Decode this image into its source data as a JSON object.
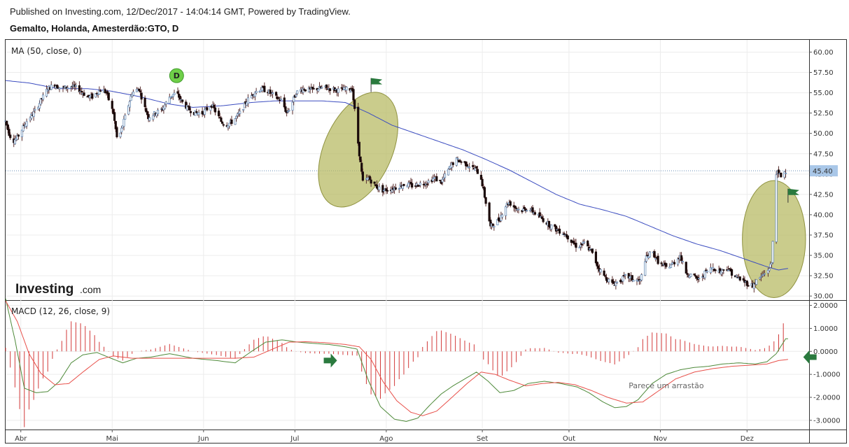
{
  "header": {
    "published": "Published on Investing.com, 12/Dec/2017 - 14:04:14 GMT, Powered by TradingView.",
    "instrument": "Gemalto, Holanda, Amesterdão:GTO, D"
  },
  "logo": {
    "main": "Investing",
    "suffix": ".com"
  },
  "chart_data": [
    {
      "type": "candlestick",
      "title": "MA (50, close, 0)",
      "ylim": [
        29.5,
        61.5
      ],
      "yticks": [
        "60.00",
        "57.50",
        "55.00",
        "52.50",
        "50.00",
        "47.50",
        "45.00",
        "42.50",
        "40.00",
        "37.50",
        "35.00",
        "32.50",
        "30.00"
      ],
      "last_price_label": "45.40",
      "last_price": 45.4,
      "colors": {
        "up": "#ffffff",
        "down": "#1a0a0a",
        "wick": "#5a2e2e",
        "ma": "#3b4cc0",
        "price_line": "#6a8fb8",
        "ellipse": "#b5b860"
      },
      "x_labels": [
        "Abr",
        "Mai",
        "Jun",
        "Jul",
        "Ago",
        "Set",
        "Out",
        "Nov",
        "Dez"
      ],
      "x_label_days": [
        13,
        91,
        169,
        247,
        325,
        407,
        481,
        559,
        633
      ],
      "price_anchors": [
        [
          0,
          51.5
        ],
        [
          3,
          50.0
        ],
        [
          6,
          49.0
        ],
        [
          10,
          49.5
        ],
        [
          14,
          50.5
        ],
        [
          18,
          51.5
        ],
        [
          24,
          52.5
        ],
        [
          30,
          54.0
        ],
        [
          36,
          55.5
        ],
        [
          42,
          56.0
        ],
        [
          48,
          55.5
        ],
        [
          56,
          55.8
        ],
        [
          62,
          55.5
        ],
        [
          66,
          55.0
        ],
        [
          70,
          54.5
        ],
        [
          74,
          54.5
        ],
        [
          78,
          55.0
        ],
        [
          82,
          55.5
        ],
        [
          86,
          55.0
        ],
        [
          92,
          52.5
        ],
        [
          95,
          49.5
        ],
        [
          98,
          50.0
        ],
        [
          102,
          52.0
        ],
        [
          108,
          55.0
        ],
        [
          114,
          55.5
        ],
        [
          118,
          53.5
        ],
        [
          122,
          52.0
        ],
        [
          128,
          52.5
        ],
        [
          134,
          53.0
        ],
        [
          140,
          54.5
        ],
        [
          146,
          55.0
        ],
        [
          150,
          54.0
        ],
        [
          156,
          53.0
        ],
        [
          162,
          52.5
        ],
        [
          168,
          52.5
        ],
        [
          172,
          53.0
        ],
        [
          176,
          53.5
        ],
        [
          180,
          52.5
        ],
        [
          184,
          51.5
        ],
        [
          188,
          51.0
        ],
        [
          194,
          51.5
        ],
        [
          200,
          52.5
        ],
        [
          206,
          54.0
        ],
        [
          212,
          55.0
        ],
        [
          218,
          55.5
        ],
        [
          224,
          55.2
        ],
        [
          230,
          54.5
        ],
        [
          236,
          54.0
        ],
        [
          240,
          52.5
        ],
        [
          244,
          53.5
        ],
        [
          248,
          55.0
        ],
        [
          254,
          55.5
        ],
        [
          260,
          55.3
        ],
        [
          266,
          55.5
        ],
        [
          272,
          55.6
        ],
        [
          278,
          55.5
        ],
        [
          284,
          55.3
        ],
        [
          290,
          55.4
        ],
        [
          296,
          55.5
        ],
        [
          302,
          47.5
        ],
        [
          305,
          44.0
        ],
        [
          310,
          44.5
        ],
        [
          316,
          43.5
        ],
        [
          322,
          43.0
        ],
        [
          330,
          43.2
        ],
        [
          336,
          43.5
        ],
        [
          342,
          43.8
        ],
        [
          348,
          43.5
        ],
        [
          354,
          43.8
        ],
        [
          360,
          44.0
        ],
        [
          366,
          44.5
        ],
        [
          372,
          44.0
        ],
        [
          378,
          45.5
        ],
        [
          384,
          46.8
        ],
        [
          390,
          46.5
        ],
        [
          396,
          46.0
        ],
        [
          402,
          45.5
        ],
        [
          406,
          44.5
        ],
        [
          410,
          41.5
        ],
        [
          414,
          38.5
        ],
        [
          418,
          39.0
        ],
        [
          422,
          39.5
        ],
        [
          426,
          41.0
        ],
        [
          430,
          41.5
        ],
        [
          434,
          41.0
        ],
        [
          440,
          40.5
        ],
        [
          446,
          40.8
        ],
        [
          452,
          40.2
        ],
        [
          458,
          39.5
        ],
        [
          464,
          38.8
        ],
        [
          470,
          38.2
        ],
        [
          476,
          37.8
        ],
        [
          482,
          37.0
        ],
        [
          488,
          36.0
        ],
        [
          494,
          36.5
        ],
        [
          500,
          35.5
        ],
        [
          506,
          33.5
        ],
        [
          512,
          32.3
        ],
        [
          518,
          31.5
        ],
        [
          524,
          31.8
        ],
        [
          530,
          32.5
        ],
        [
          536,
          32.0
        ],
        [
          542,
          31.8
        ],
        [
          546,
          34.5
        ],
        [
          552,
          35.5
        ],
        [
          558,
          34.0
        ],
        [
          564,
          33.5
        ],
        [
          570,
          34.0
        ],
        [
          576,
          35.0
        ],
        [
          580,
          33.0
        ],
        [
          586,
          32.5
        ],
        [
          592,
          32.0
        ],
        [
          598,
          33.0
        ],
        [
          604,
          33.5
        ],
        [
          610,
          33.0
        ],
        [
          616,
          33.5
        ],
        [
          622,
          32.5
        ],
        [
          628,
          32.0
        ],
        [
          634,
          31.5
        ],
        [
          638,
          31.3
        ],
        [
          642,
          32.0
        ],
        [
          646,
          32.5
        ],
        [
          650,
          33.0
        ],
        [
          654,
          34.0
        ],
        [
          658,
          45.2
        ],
        [
          662,
          44.8
        ],
        [
          666,
          45.4
        ]
      ],
      "ma_anchors": [
        [
          0,
          56.5
        ],
        [
          20,
          56.2
        ],
        [
          45,
          55.5
        ],
        [
          70,
          55.5
        ],
        [
          90,
          55.2
        ],
        [
          115,
          54.5
        ],
        [
          140,
          53.6
        ],
        [
          160,
          53.2
        ],
        [
          185,
          53.4
        ],
        [
          210,
          53.8
        ],
        [
          230,
          54.0
        ],
        [
          250,
          54.0
        ],
        [
          270,
          54.0
        ],
        [
          290,
          53.8
        ],
        [
          310,
          52.5
        ],
        [
          330,
          51.0
        ],
        [
          350,
          50.0
        ],
        [
          370,
          49.0
        ],
        [
          390,
          48.0
        ],
        [
          410,
          46.8
        ],
        [
          430,
          45.5
        ],
        [
          450,
          44.0
        ],
        [
          470,
          42.5
        ],
        [
          490,
          41.3
        ],
        [
          510,
          40.6
        ],
        [
          530,
          39.8
        ],
        [
          550,
          38.6
        ],
        [
          570,
          37.4
        ],
        [
          590,
          36.4
        ],
        [
          610,
          35.6
        ],
        [
          630,
          34.6
        ],
        [
          650,
          33.6
        ],
        [
          660,
          33.2
        ],
        [
          668,
          33.4
        ]
      ],
      "ellipses": [
        {
          "cx_day": 301,
          "cy_value": 48.0,
          "rx_days": 29,
          "ry_value": 7.5,
          "rotate_deg": 24
        },
        {
          "cx_day": 656,
          "cy_value": 37.0,
          "rx_days": 27,
          "ry_value": 7.2,
          "rotate_deg": 0
        }
      ],
      "flags": [
        {
          "day": 312,
          "value": 56.8,
          "color": "#2a7a3e"
        },
        {
          "day": 668,
          "value": 43.2,
          "color": "#2a7a3e"
        }
      ],
      "dividend_marker": {
        "label": "D",
        "day": 146,
        "value": 57.1,
        "color": "#6fcf49"
      }
    },
    {
      "type": "line",
      "title": "MACD (12, 26, close, 9)",
      "ylim": [
        -3.4,
        2.2
      ],
      "yticks": [
        "2.0000",
        "1.0000",
        "0.0000",
        "-1.0000",
        "-2.0000",
        "-3.0000"
      ],
      "series": [
        {
          "role": "macd",
          "color": "#4e8a3a",
          "anchors": [
            [
              0,
              2.3
            ],
            [
              8,
              0.5
            ],
            [
              16,
              -1.6
            ],
            [
              26,
              -1.8
            ],
            [
              36,
              -1.75
            ],
            [
              46,
              -1.3
            ],
            [
              56,
              -0.5
            ],
            [
              66,
              -0.15
            ],
            [
              78,
              -0.05
            ],
            [
              90,
              -0.3
            ],
            [
              100,
              -0.5
            ],
            [
              112,
              -0.3
            ],
            [
              124,
              -0.25
            ],
            [
              140,
              -0.1
            ],
            [
              160,
              -0.3
            ],
            [
              180,
              -0.4
            ],
            [
              196,
              -0.5
            ],
            [
              210,
              0.0
            ],
            [
              222,
              0.4
            ],
            [
              236,
              0.5
            ],
            [
              250,
              0.4
            ],
            [
              262,
              0.35
            ],
            [
              276,
              0.3
            ],
            [
              290,
              0.2
            ],
            [
              300,
              0.1
            ],
            [
              310,
              -1.3
            ],
            [
              320,
              -2.4
            ],
            [
              332,
              -2.95
            ],
            [
              342,
              -3.05
            ],
            [
              352,
              -2.9
            ],
            [
              362,
              -2.35
            ],
            [
              372,
              -1.85
            ],
            [
              382,
              -1.5
            ],
            [
              392,
              -1.2
            ],
            [
              402,
              -0.9
            ],
            [
              412,
              -1.3
            ],
            [
              422,
              -1.8
            ],
            [
              434,
              -1.7
            ],
            [
              446,
              -1.4
            ],
            [
              460,
              -1.3
            ],
            [
              474,
              -1.4
            ],
            [
              488,
              -1.55
            ],
            [
              498,
              -1.8
            ],
            [
              510,
              -2.2
            ],
            [
              520,
              -2.45
            ],
            [
              530,
              -2.4
            ],
            [
              540,
              -2.1
            ],
            [
              552,
              -1.4
            ],
            [
              564,
              -1.0
            ],
            [
              576,
              -0.8
            ],
            [
              588,
              -0.7
            ],
            [
              600,
              -0.65
            ],
            [
              612,
              -0.55
            ],
            [
              626,
              -0.5
            ],
            [
              640,
              -0.55
            ],
            [
              650,
              -0.45
            ],
            [
              658,
              -0.1
            ],
            [
              666,
              0.55
            ]
          ]
        },
        {
          "role": "signal",
          "color": "#e8504a",
          "anchors": [
            [
              0,
              2.2
            ],
            [
              10,
              1.3
            ],
            [
              20,
              -0.1
            ],
            [
              30,
              -0.95
            ],
            [
              42,
              -1.45
            ],
            [
              54,
              -1.4
            ],
            [
              66,
              -0.9
            ],
            [
              80,
              -0.35
            ],
            [
              92,
              -0.2
            ],
            [
              108,
              -0.3
            ],
            [
              124,
              -0.3
            ],
            [
              142,
              -0.3
            ],
            [
              160,
              -0.3
            ],
            [
              180,
              -0.3
            ],
            [
              196,
              -0.3
            ],
            [
              212,
              -0.25
            ],
            [
              228,
              0.1
            ],
            [
              242,
              0.4
            ],
            [
              256,
              0.42
            ],
            [
              272,
              0.38
            ],
            [
              290,
              0.3
            ],
            [
              302,
              0.2
            ],
            [
              312,
              -0.35
            ],
            [
              322,
              -1.3
            ],
            [
              334,
              -2.15
            ],
            [
              346,
              -2.65
            ],
            [
              356,
              -2.8
            ],
            [
              368,
              -2.6
            ],
            [
              380,
              -2.05
            ],
            [
              394,
              -1.4
            ],
            [
              406,
              -0.9
            ],
            [
              418,
              -1.0
            ],
            [
              430,
              -1.25
            ],
            [
              444,
              -1.5
            ],
            [
              458,
              -1.4
            ],
            [
              472,
              -1.35
            ],
            [
              486,
              -1.45
            ],
            [
              500,
              -1.7
            ],
            [
              514,
              -2.0
            ],
            [
              530,
              -2.25
            ],
            [
              544,
              -2.2
            ],
            [
              558,
              -1.7
            ],
            [
              572,
              -1.2
            ],
            [
              588,
              -0.9
            ],
            [
              604,
              -0.75
            ],
            [
              620,
              -0.65
            ],
            [
              636,
              -0.6
            ],
            [
              650,
              -0.55
            ],
            [
              660,
              -0.4
            ],
            [
              668,
              -0.35
            ]
          ]
        },
        {
          "role": "histogram",
          "color": "#d23a3a",
          "bars_from": "macd_minus_signal"
        }
      ],
      "annotation": "Parece um arrastão",
      "annotation_day": 532,
      "annotation_value": -1.6,
      "arrows": [
        {
          "day": 277,
          "value": -0.4,
          "direction": "right",
          "color": "#2a7a3e"
        },
        {
          "day": 687,
          "value": -0.25,
          "direction": "left",
          "color": "#2a7a3e"
        }
      ]
    }
  ]
}
